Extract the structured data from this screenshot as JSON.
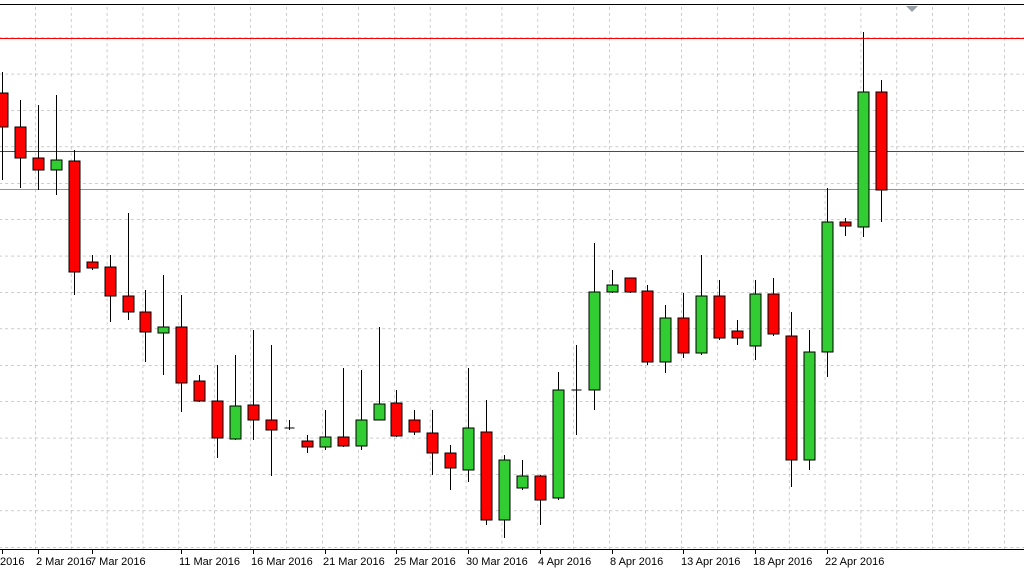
{
  "chart_data": {
    "type": "candlestick",
    "categories": [
      "2016",
      null,
      "2 Mar 2016",
      null,
      null,
      "7 Mar 2016",
      null,
      null,
      null,
      null,
      "11 Mar 2016",
      null,
      null,
      null,
      "16 Mar 2016",
      null,
      null,
      null,
      "21 Mar 2016",
      null,
      null,
      null,
      "25 Mar 2016",
      null,
      null,
      null,
      "30 Mar 2016",
      null,
      null,
      null,
      "4 Apr 2016",
      null,
      null,
      null,
      "8 Apr 2016",
      null,
      null,
      null,
      "13 Apr 2016",
      null,
      null,
      null,
      "18 Apr 2016",
      null,
      null,
      null,
      "22 Apr 2016",
      null,
      null,
      null
    ],
    "open": [
      482,
      448,
      417,
      405,
      414,
      313,
      308,
      279,
      263,
      242,
      248,
      194,
      174,
      136,
      170,
      155,
      147,
      134,
      128,
      138,
      129,
      155,
      172,
      155,
      142,
      122,
      105,
      143,
      55,
      87,
      99,
      77,
      185,
      185,
      283,
      297,
      284,
      213,
      257,
      222,
      279,
      244,
      229,
      281,
      239,
      115,
      223,
      353,
      348,
      483
    ],
    "high": [
      503,
      475,
      470,
      480,
      425,
      320,
      320,
      362,
      285,
      300,
      280,
      200,
      210,
      220,
      245,
      230,
      155,
      140,
      165,
      207,
      205,
      248,
      185,
      165,
      165,
      130,
      207,
      175,
      120,
      115,
      100,
      203,
      230,
      332,
      305,
      297,
      290,
      270,
      282,
      320,
      295,
      255,
      295,
      297,
      263,
      245,
      387,
      357,
      543,
      495
    ],
    "low": [
      395,
      387,
      385,
      380,
      280,
      305,
      253,
      255,
      213,
      200,
      163,
      173,
      117,
      135,
      135,
      99,
      145,
      122,
      125,
      128,
      125,
      155,
      138,
      140,
      100,
      85,
      93,
      50,
      37,
      85,
      50,
      75,
      140,
      165,
      282,
      282,
      210,
      202,
      217,
      220,
      235,
      230,
      215,
      239,
      88,
      105,
      198,
      339,
      338,
      353
    ],
    "close": [
      448,
      417,
      405,
      415,
      303,
      307,
      279,
      263,
      243,
      248,
      192,
      174,
      137,
      169,
      155,
      145,
      147,
      128,
      138,
      129,
      155,
      171,
      139,
      143,
      122,
      107,
      147,
      55,
      115,
      99,
      75,
      185,
      185,
      283,
      290,
      283,
      213,
      257,
      222,
      279,
      237,
      237,
      281,
      241,
      115,
      223,
      353,
      349,
      483,
      385
    ],
    "up_color": "#32cd32",
    "down_color": "#ff0000",
    "ylim": [
      0,
      575
    ],
    "horizontal_lines": [
      {
        "value": 537,
        "color": "#ff0000"
      },
      {
        "value": 424,
        "color": "#ff0000"
      },
      {
        "value": 386,
        "color": "#7f9a9a"
      }
    ]
  }
}
